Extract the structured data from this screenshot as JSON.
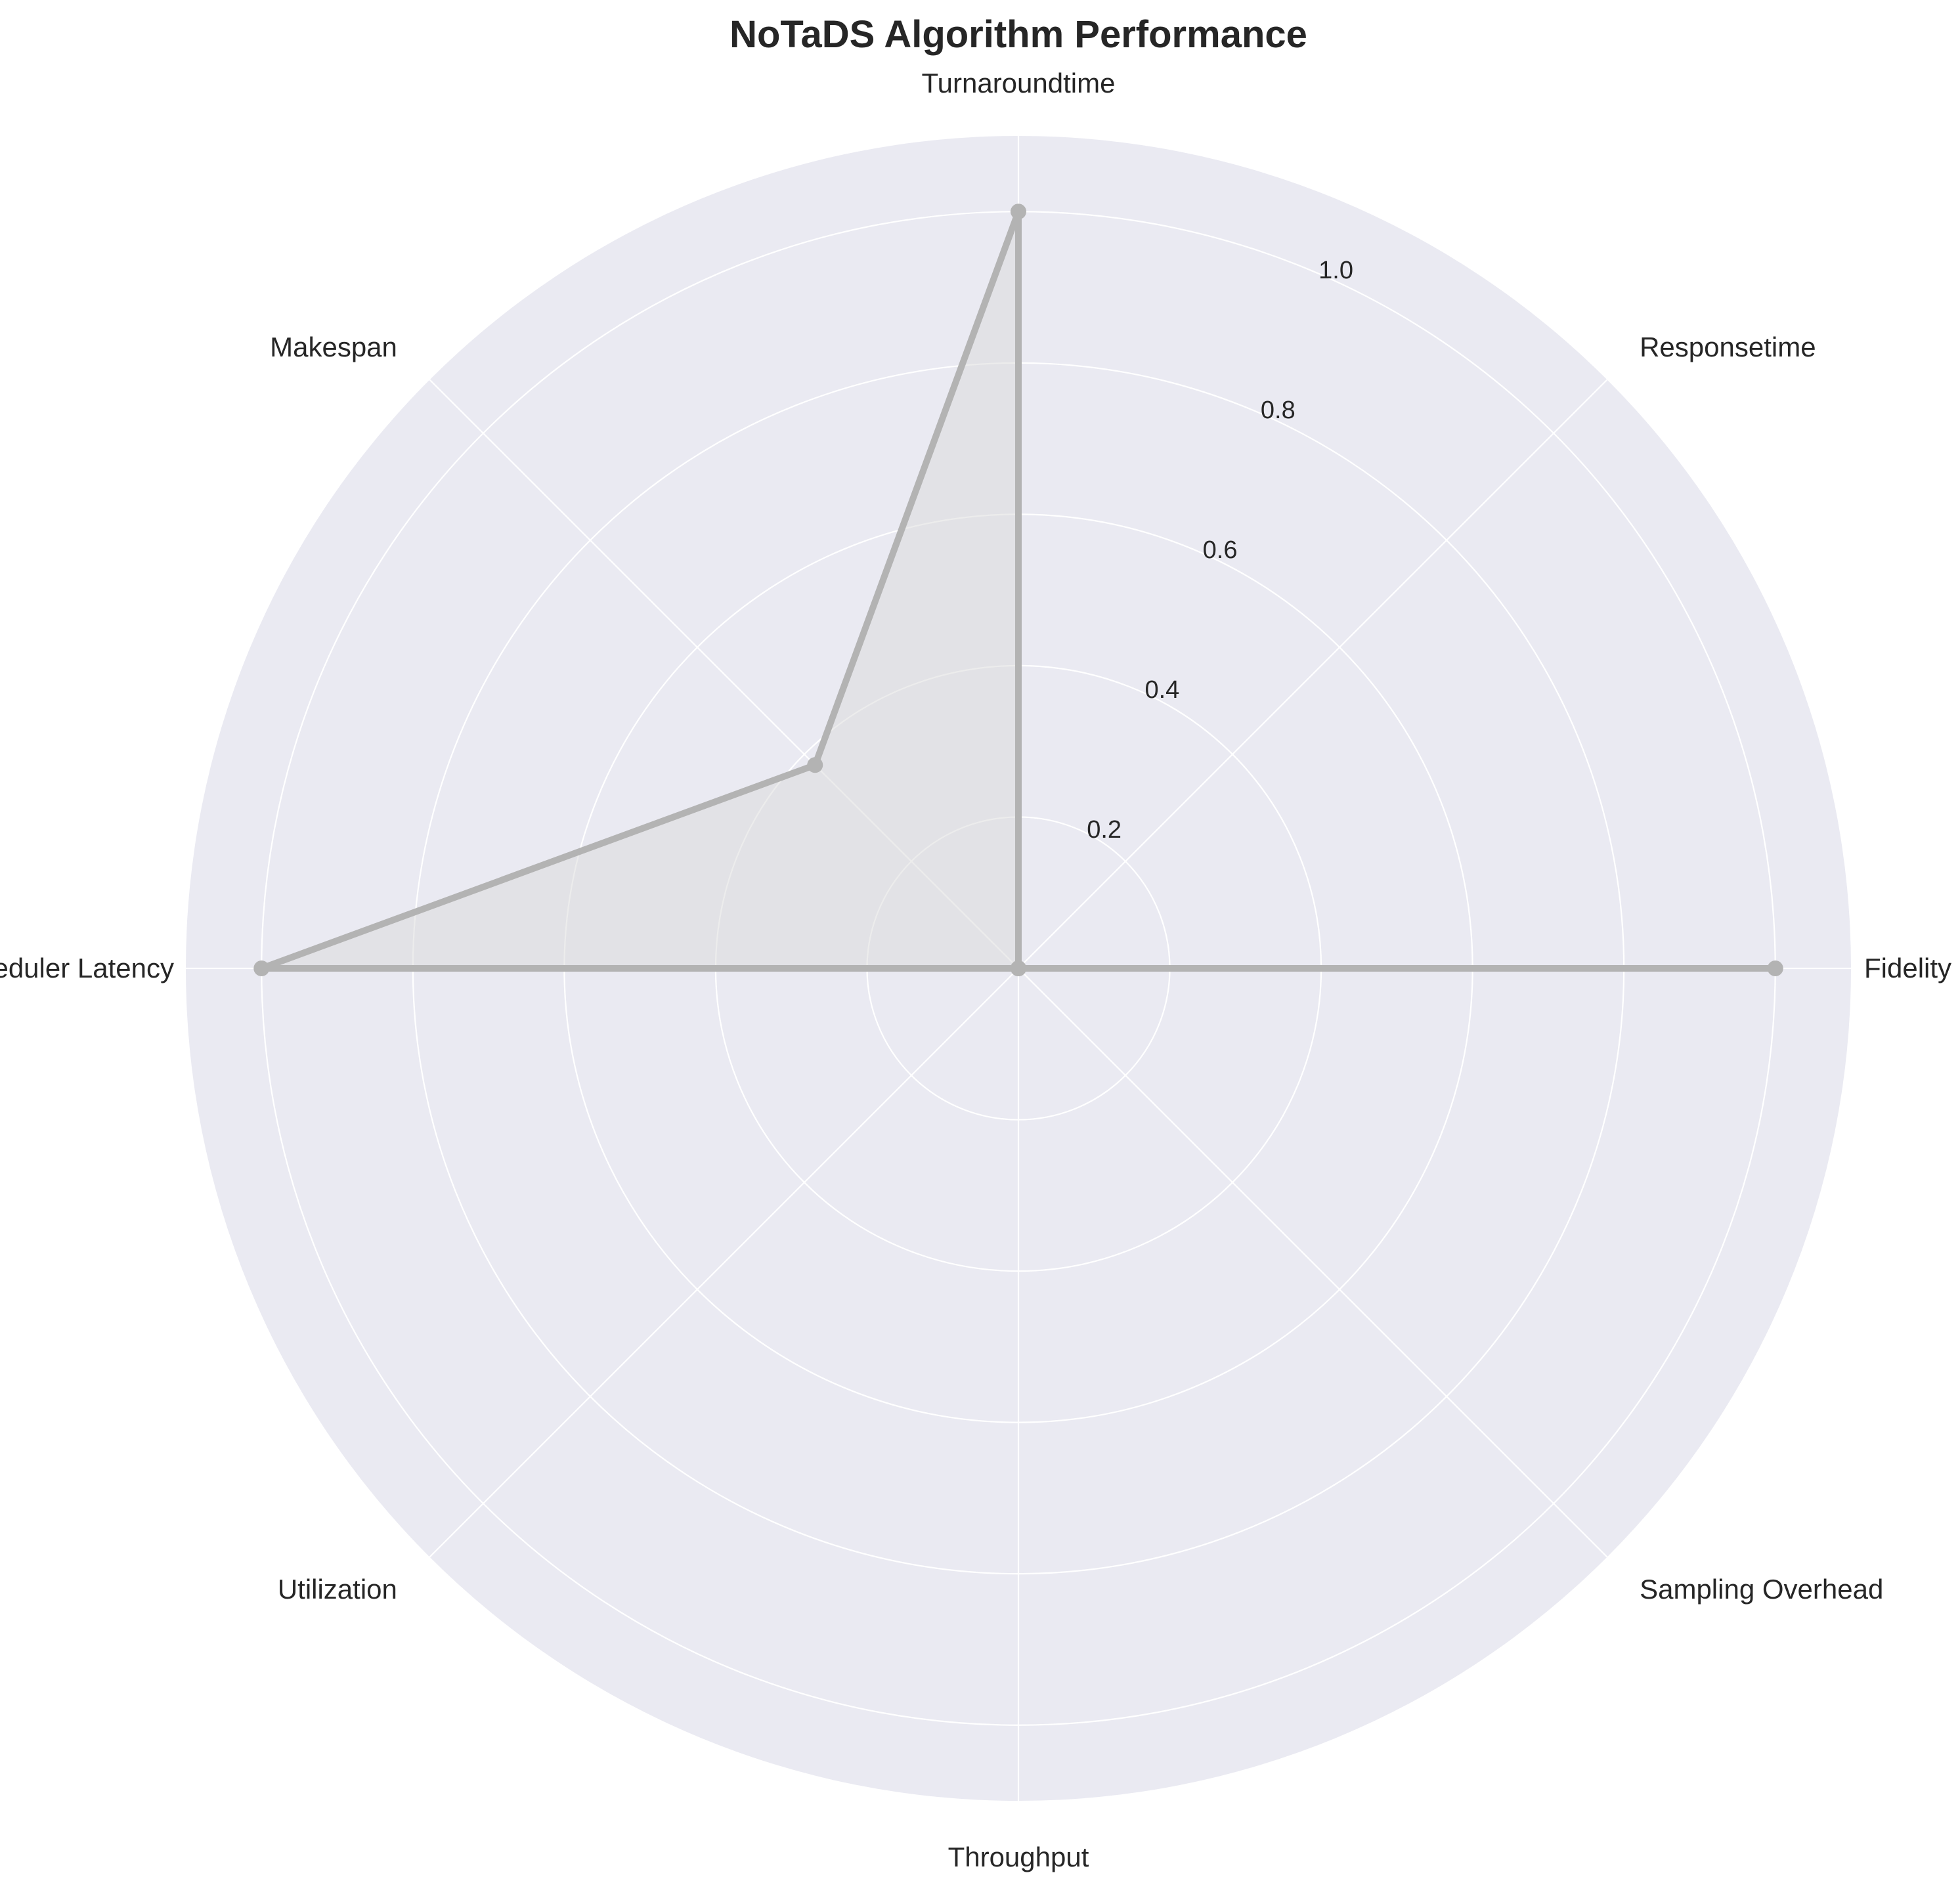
{
  "chart_data": {
    "type": "radar",
    "title": "NoTaDS Algorithm Performance",
    "categories": [
      "Fidelity",
      "Responsetime",
      "Turnaroundtime",
      "Makespan",
      "Scheduler Latency",
      "Utilization",
      "Throughput",
      "Sampling Overhead"
    ],
    "series": [
      {
        "values": [
          1.0,
          0.0,
          1.0,
          0.38,
          1.0,
          0.0,
          0.0,
          0.0
        ],
        "color": "#b3b3b3",
        "fill_color": "#d9d9d9"
      }
    ],
    "rlim": [
      0,
      1.1
    ],
    "rticks": [
      0.2,
      0.4,
      0.6,
      0.8,
      1.0
    ],
    "rtick_labels": [
      "0.2",
      "0.4",
      "0.6",
      "0.8",
      "1.0"
    ],
    "grid": true,
    "background_color": "#eaeaf2",
    "grid_color": "#ffffff"
  }
}
